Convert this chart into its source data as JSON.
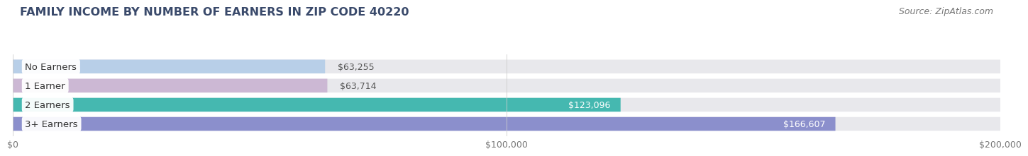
{
  "title": "FAMILY INCOME BY NUMBER OF EARNERS IN ZIP CODE 40220",
  "source": "Source: ZipAtlas.com",
  "categories": [
    "No Earners",
    "1 Earner",
    "2 Earners",
    "3+ Earners"
  ],
  "values": [
    63255,
    63714,
    123096,
    166607
  ],
  "bar_colors": [
    "#b8cfe8",
    "#ccb8d4",
    "#45b8b0",
    "#8b8fcc"
  ],
  "bar_labels": [
    "$63,255",
    "$63,714",
    "$123,096",
    "$166,607"
  ],
  "label_inside": [
    false,
    false,
    true,
    true
  ],
  "label_color_inside": "#ffffff",
  "label_color_outside": "#555555",
  "xlim": [
    0,
    200000
  ],
  "xticks": [
    0,
    100000,
    200000
  ],
  "xtick_labels": [
    "$0",
    "$100,000",
    "$200,000"
  ],
  "background_color": "#ffffff",
  "bar_bg_color": "#e8e8ec",
  "title_fontsize": 11.5,
  "source_fontsize": 9,
  "label_fontsize": 9,
  "category_fontsize": 9.5,
  "title_color": "#3a4a6b",
  "source_color": "#777777"
}
